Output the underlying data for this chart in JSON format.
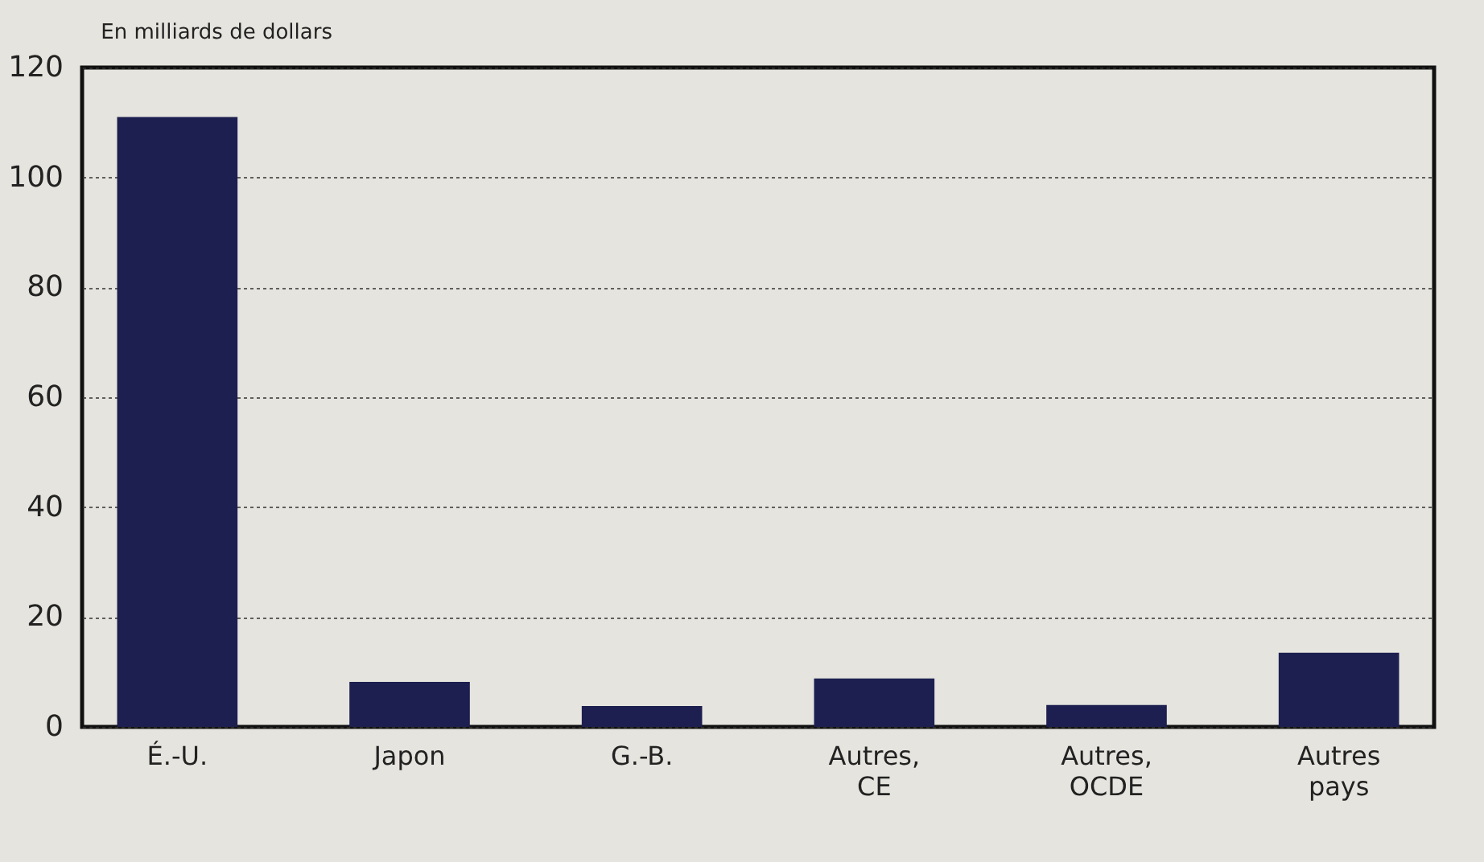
{
  "chart_data": {
    "type": "bar",
    "ylabel": "En milliards de dollars",
    "categories": [
      "É.-U.",
      "Japon",
      "G.-B.",
      "Autres,\nCE",
      "Autres,\nOCDE",
      "Autres\npays"
    ],
    "values": [
      111,
      8.2,
      3.8,
      8.8,
      4,
      13.5
    ],
    "color": "#1c1f4f",
    "ylim": [
      0,
      120
    ],
    "yticks": [
      0,
      20,
      40,
      60,
      80,
      100,
      120
    ],
    "grid": "y"
  }
}
